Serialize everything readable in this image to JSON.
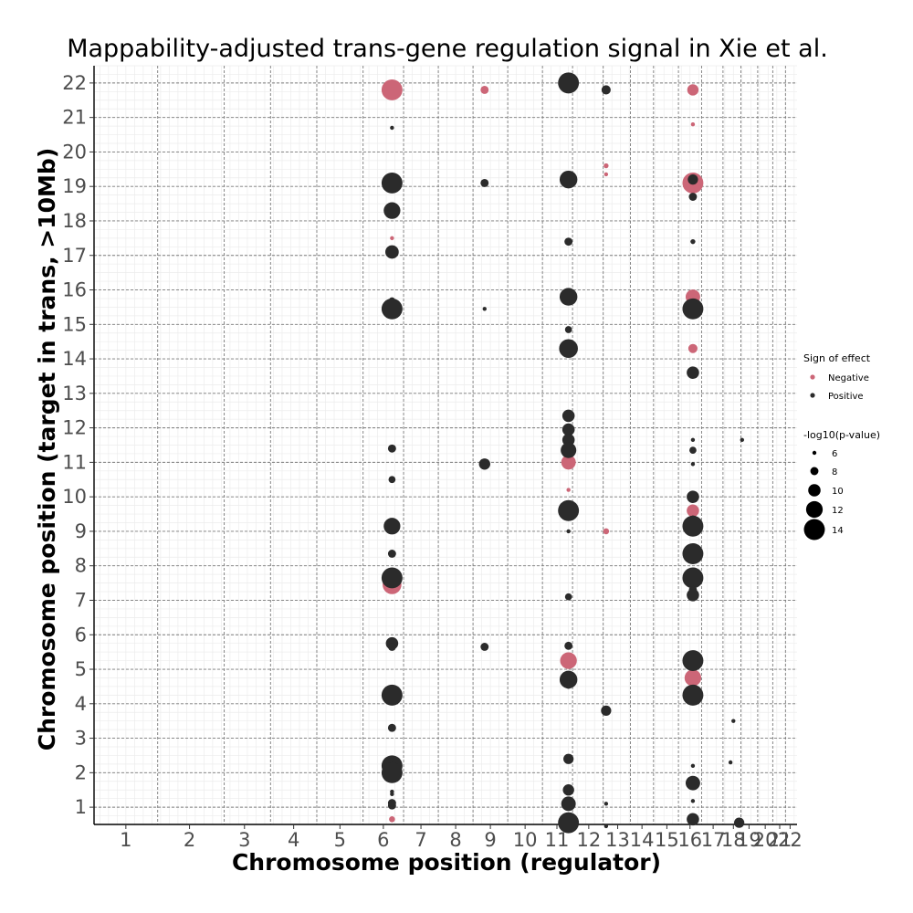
{
  "chart_data": {
    "type": "scatter",
    "title": "Mappability-adjusted trans-gene regulation signal in Xie et al.",
    "xlabel": "Chromosome position (regulator)",
    "ylabel": "Chromosome position (target in trans, >10Mb)",
    "x_ticks": [
      {
        "label": "1",
        "pos": 1.5
      },
      {
        "label": "2",
        "pos": 2.6
      },
      {
        "label": "3",
        "pos": 3.55
      },
      {
        "label": "4",
        "pos": 4.4
      },
      {
        "label": "5",
        "pos": 5.2
      },
      {
        "label": "6",
        "pos": 5.95
      },
      {
        "label": "7",
        "pos": 6.6
      },
      {
        "label": "8",
        "pos": 7.2
      },
      {
        "label": "9",
        "pos": 7.8
      },
      {
        "label": "10",
        "pos": 8.4
      },
      {
        "label": "11",
        "pos": 8.95
      },
      {
        "label": "12",
        "pos": 9.5
      },
      {
        "label": "13",
        "pos": 10.0
      },
      {
        "label": "14",
        "pos": 10.42
      },
      {
        "label": "15",
        "pos": 10.85
      },
      {
        "label": "16",
        "pos": 11.25
      },
      {
        "label": "17",
        "pos": 11.65
      },
      {
        "label": "18",
        "pos": 12.0
      },
      {
        "label": "19",
        "pos": 12.27
      },
      {
        "label": "20",
        "pos": 12.55
      },
      {
        "label": "21",
        "pos": 12.8
      },
      {
        "label": "22",
        "pos": 12.98
      }
    ],
    "x_lines": [
      2.05,
      3.2,
      4.0,
      4.8,
      5.6,
      6.3,
      6.9,
      7.5,
      8.1,
      8.7,
      9.22,
      9.75,
      10.22,
      10.62,
      11.05,
      11.45,
      11.82,
      12.13,
      12.42,
      12.68,
      12.9
    ],
    "xlim": [
      0.95,
      13.1
    ],
    "y_ticks": [
      {
        "label": "1",
        "pos": 1.0
      },
      {
        "label": "2",
        "pos": 2.0
      },
      {
        "label": "3",
        "pos": 3.0
      },
      {
        "label": "4",
        "pos": 4.0
      },
      {
        "label": "5",
        "pos": 5.0
      },
      {
        "label": "6",
        "pos": 6.0
      },
      {
        "label": "7",
        "pos": 7.0
      },
      {
        "label": "8",
        "pos": 8.0
      },
      {
        "label": "9",
        "pos": 9.0
      },
      {
        "label": "10",
        "pos": 10.0
      },
      {
        "label": "11",
        "pos": 11.0
      },
      {
        "label": "12",
        "pos": 12.0
      },
      {
        "label": "13",
        "pos": 13.0
      },
      {
        "label": "14",
        "pos": 14.0
      },
      {
        "label": "15",
        "pos": 15.0
      },
      {
        "label": "16",
        "pos": 16.0
      },
      {
        "label": "17",
        "pos": 17.0
      },
      {
        "label": "18",
        "pos": 18.0
      },
      {
        "label": "19",
        "pos": 19.0
      },
      {
        "label": "20",
        "pos": 20.0
      },
      {
        "label": "21",
        "pos": 21.0
      },
      {
        "label": "22",
        "pos": 22.0
      }
    ],
    "ylim": [
      0.5,
      22.5
    ],
    "grid": true,
    "series": [
      {
        "name": "Negative",
        "color": "#CC6677",
        "points": [
          {
            "x": 6.1,
            "y": 21.8,
            "p": 14
          },
          {
            "x": 7.7,
            "y": 21.8,
            "p": 8
          },
          {
            "x": 11.3,
            "y": 21.8,
            "p": 9.5
          },
          {
            "x": 11.3,
            "y": 20.8,
            "p": 6
          },
          {
            "x": 9.8,
            "y": 19.6,
            "p": 6.5
          },
          {
            "x": 9.8,
            "y": 19.35,
            "p": 6
          },
          {
            "x": 11.3,
            "y": 19.1,
            "p": 14
          },
          {
            "x": 6.1,
            "y": 17.5,
            "p": 6
          },
          {
            "x": 11.3,
            "y": 15.8,
            "p": 11
          },
          {
            "x": 11.3,
            "y": 15.4,
            "p": 10
          },
          {
            "x": 11.3,
            "y": 14.3,
            "p": 8.5
          },
          {
            "x": 9.15,
            "y": 11.0,
            "p": 11
          },
          {
            "x": 9.15,
            "y": 10.2,
            "p": 6
          },
          {
            "x": 11.3,
            "y": 9.6,
            "p": 10
          },
          {
            "x": 9.8,
            "y": 9.0,
            "p": 7
          },
          {
            "x": 6.1,
            "y": 7.45,
            "p": 13
          },
          {
            "x": 9.15,
            "y": 5.25,
            "p": 12
          },
          {
            "x": 11.3,
            "y": 5.1,
            "p": 9.5
          },
          {
            "x": 11.3,
            "y": 4.75,
            "p": 12
          },
          {
            "x": 6.1,
            "y": 0.65,
            "p": 7
          },
          {
            "x": 9.15,
            "y": 0.48,
            "p": 9
          }
        ]
      },
      {
        "name": "Positive",
        "color": "#2b2b2b",
        "points": [
          {
            "x": 9.15,
            "y": 22.0,
            "p": 14
          },
          {
            "x": 9.8,
            "y": 21.8,
            "p": 8.5
          },
          {
            "x": 6.1,
            "y": 20.7,
            "p": 5
          },
          {
            "x": 6.1,
            "y": 19.1,
            "p": 14
          },
          {
            "x": 7.7,
            "y": 19.1,
            "p": 8
          },
          {
            "x": 9.15,
            "y": 19.2,
            "p": 12.5
          },
          {
            "x": 11.3,
            "y": 19.2,
            "p": 9
          },
          {
            "x": 11.3,
            "y": 18.7,
            "p": 8
          },
          {
            "x": 6.1,
            "y": 18.3,
            "p": 12
          },
          {
            "x": 9.15,
            "y": 17.4,
            "p": 8
          },
          {
            "x": 11.3,
            "y": 17.4,
            "p": 6.5
          },
          {
            "x": 6.1,
            "y": 17.1,
            "p": 10.5
          },
          {
            "x": 9.15,
            "y": 15.8,
            "p": 12.5
          },
          {
            "x": 6.1,
            "y": 15.7,
            "p": 7
          },
          {
            "x": 6.1,
            "y": 15.45,
            "p": 14
          },
          {
            "x": 7.7,
            "y": 15.45,
            "p": 5.5
          },
          {
            "x": 11.3,
            "y": 15.45,
            "p": 14
          },
          {
            "x": 9.15,
            "y": 14.85,
            "p": 7.5
          },
          {
            "x": 9.15,
            "y": 14.3,
            "p": 13
          },
          {
            "x": 11.3,
            "y": 13.6,
            "p": 10
          },
          {
            "x": 9.15,
            "y": 12.35,
            "p": 10
          },
          {
            "x": 9.15,
            "y": 11.95,
            "p": 10
          },
          {
            "x": 9.15,
            "y": 11.65,
            "p": 10
          },
          {
            "x": 9.15,
            "y": 11.35,
            "p": 11.5
          },
          {
            "x": 6.1,
            "y": 11.4,
            "p": 8
          },
          {
            "x": 11.3,
            "y": 11.65,
            "p": 5
          },
          {
            "x": 11.3,
            "y": 11.35,
            "p": 7.5
          },
          {
            "x": 11.3,
            "y": 10.95,
            "p": 5
          },
          {
            "x": 12.15,
            "y": 11.65,
            "p": 5.5
          },
          {
            "x": 7.7,
            "y": 10.95,
            "p": 9.5
          },
          {
            "x": 6.1,
            "y": 10.5,
            "p": 7.5
          },
          {
            "x": 11.3,
            "y": 10.0,
            "p": 10
          },
          {
            "x": 9.15,
            "y": 9.6,
            "p": 14
          },
          {
            "x": 11.3,
            "y": 9.4,
            "p": 6
          },
          {
            "x": 11.3,
            "y": 9.15,
            "p": 14
          },
          {
            "x": 6.1,
            "y": 9.15,
            "p": 12
          },
          {
            "x": 9.15,
            "y": 9.0,
            "p": 5
          },
          {
            "x": 6.1,
            "y": 8.35,
            "p": 8
          },
          {
            "x": 11.3,
            "y": 8.35,
            "p": 14
          },
          {
            "x": 6.1,
            "y": 7.65,
            "p": 14
          },
          {
            "x": 11.3,
            "y": 7.65,
            "p": 14
          },
          {
            "x": 11.3,
            "y": 7.3,
            "p": 8
          },
          {
            "x": 11.3,
            "y": 7.15,
            "p": 10
          },
          {
            "x": 9.15,
            "y": 7.1,
            "p": 7.5
          },
          {
            "x": 6.1,
            "y": 5.75,
            "p": 10
          },
          {
            "x": 6.1,
            "y": 5.65,
            "p": 8
          },
          {
            "x": 7.7,
            "y": 5.65,
            "p": 8
          },
          {
            "x": 9.15,
            "y": 5.68,
            "p": 8
          },
          {
            "x": 11.3,
            "y": 5.25,
            "p": 14
          },
          {
            "x": 9.15,
            "y": 4.7,
            "p": 12.5
          },
          {
            "x": 9.15,
            "y": 4.55,
            "p": 8
          },
          {
            "x": 6.1,
            "y": 4.25,
            "p": 14
          },
          {
            "x": 11.3,
            "y": 4.25,
            "p": 14
          },
          {
            "x": 9.8,
            "y": 3.8,
            "p": 9
          },
          {
            "x": 12.0,
            "y": 3.5,
            "p": 6
          },
          {
            "x": 6.1,
            "y": 3.3,
            "p": 8
          },
          {
            "x": 9.15,
            "y": 2.4,
            "p": 9
          },
          {
            "x": 11.95,
            "y": 2.3,
            "p": 5.5
          },
          {
            "x": 11.3,
            "y": 2.2,
            "p": 6
          },
          {
            "x": 6.1,
            "y": 2.2,
            "p": 14
          },
          {
            "x": 6.1,
            "y": 2.0,
            "p": 14
          },
          {
            "x": 11.3,
            "y": 1.7,
            "p": 11
          },
          {
            "x": 9.15,
            "y": 1.5,
            "p": 9.5
          },
          {
            "x": 6.1,
            "y": 1.45,
            "p": 5
          },
          {
            "x": 6.1,
            "y": 1.38,
            "p": 5.5
          },
          {
            "x": 11.3,
            "y": 1.18,
            "p": 6
          },
          {
            "x": 6.1,
            "y": 1.12,
            "p": 8
          },
          {
            "x": 6.1,
            "y": 1.05,
            "p": 8
          },
          {
            "x": 9.15,
            "y": 1.1,
            "p": 11
          },
          {
            "x": 9.8,
            "y": 1.1,
            "p": 6
          },
          {
            "x": 11.3,
            "y": 0.65,
            "p": 10
          },
          {
            "x": 12.1,
            "y": 0.55,
            "p": 9
          },
          {
            "x": 9.15,
            "y": 0.55,
            "p": 14
          },
          {
            "x": 9.8,
            "y": 0.45,
            "p": 6
          }
        ]
      }
    ],
    "legend": {
      "placement": "right",
      "color_title": "Sign of effect",
      "color_items": [
        {
          "label": "Negative",
          "color": "#CC6677"
        },
        {
          "label": "Positive",
          "color": "#2b2b2b"
        }
      ],
      "size_title": "-log10(p-value)",
      "size_items": [
        {
          "label": "6",
          "p": 6
        },
        {
          "label": "8",
          "p": 8
        },
        {
          "label": "10",
          "p": 10
        },
        {
          "label": "12",
          "p": 12
        },
        {
          "label": "14",
          "p": 14
        }
      ]
    }
  }
}
